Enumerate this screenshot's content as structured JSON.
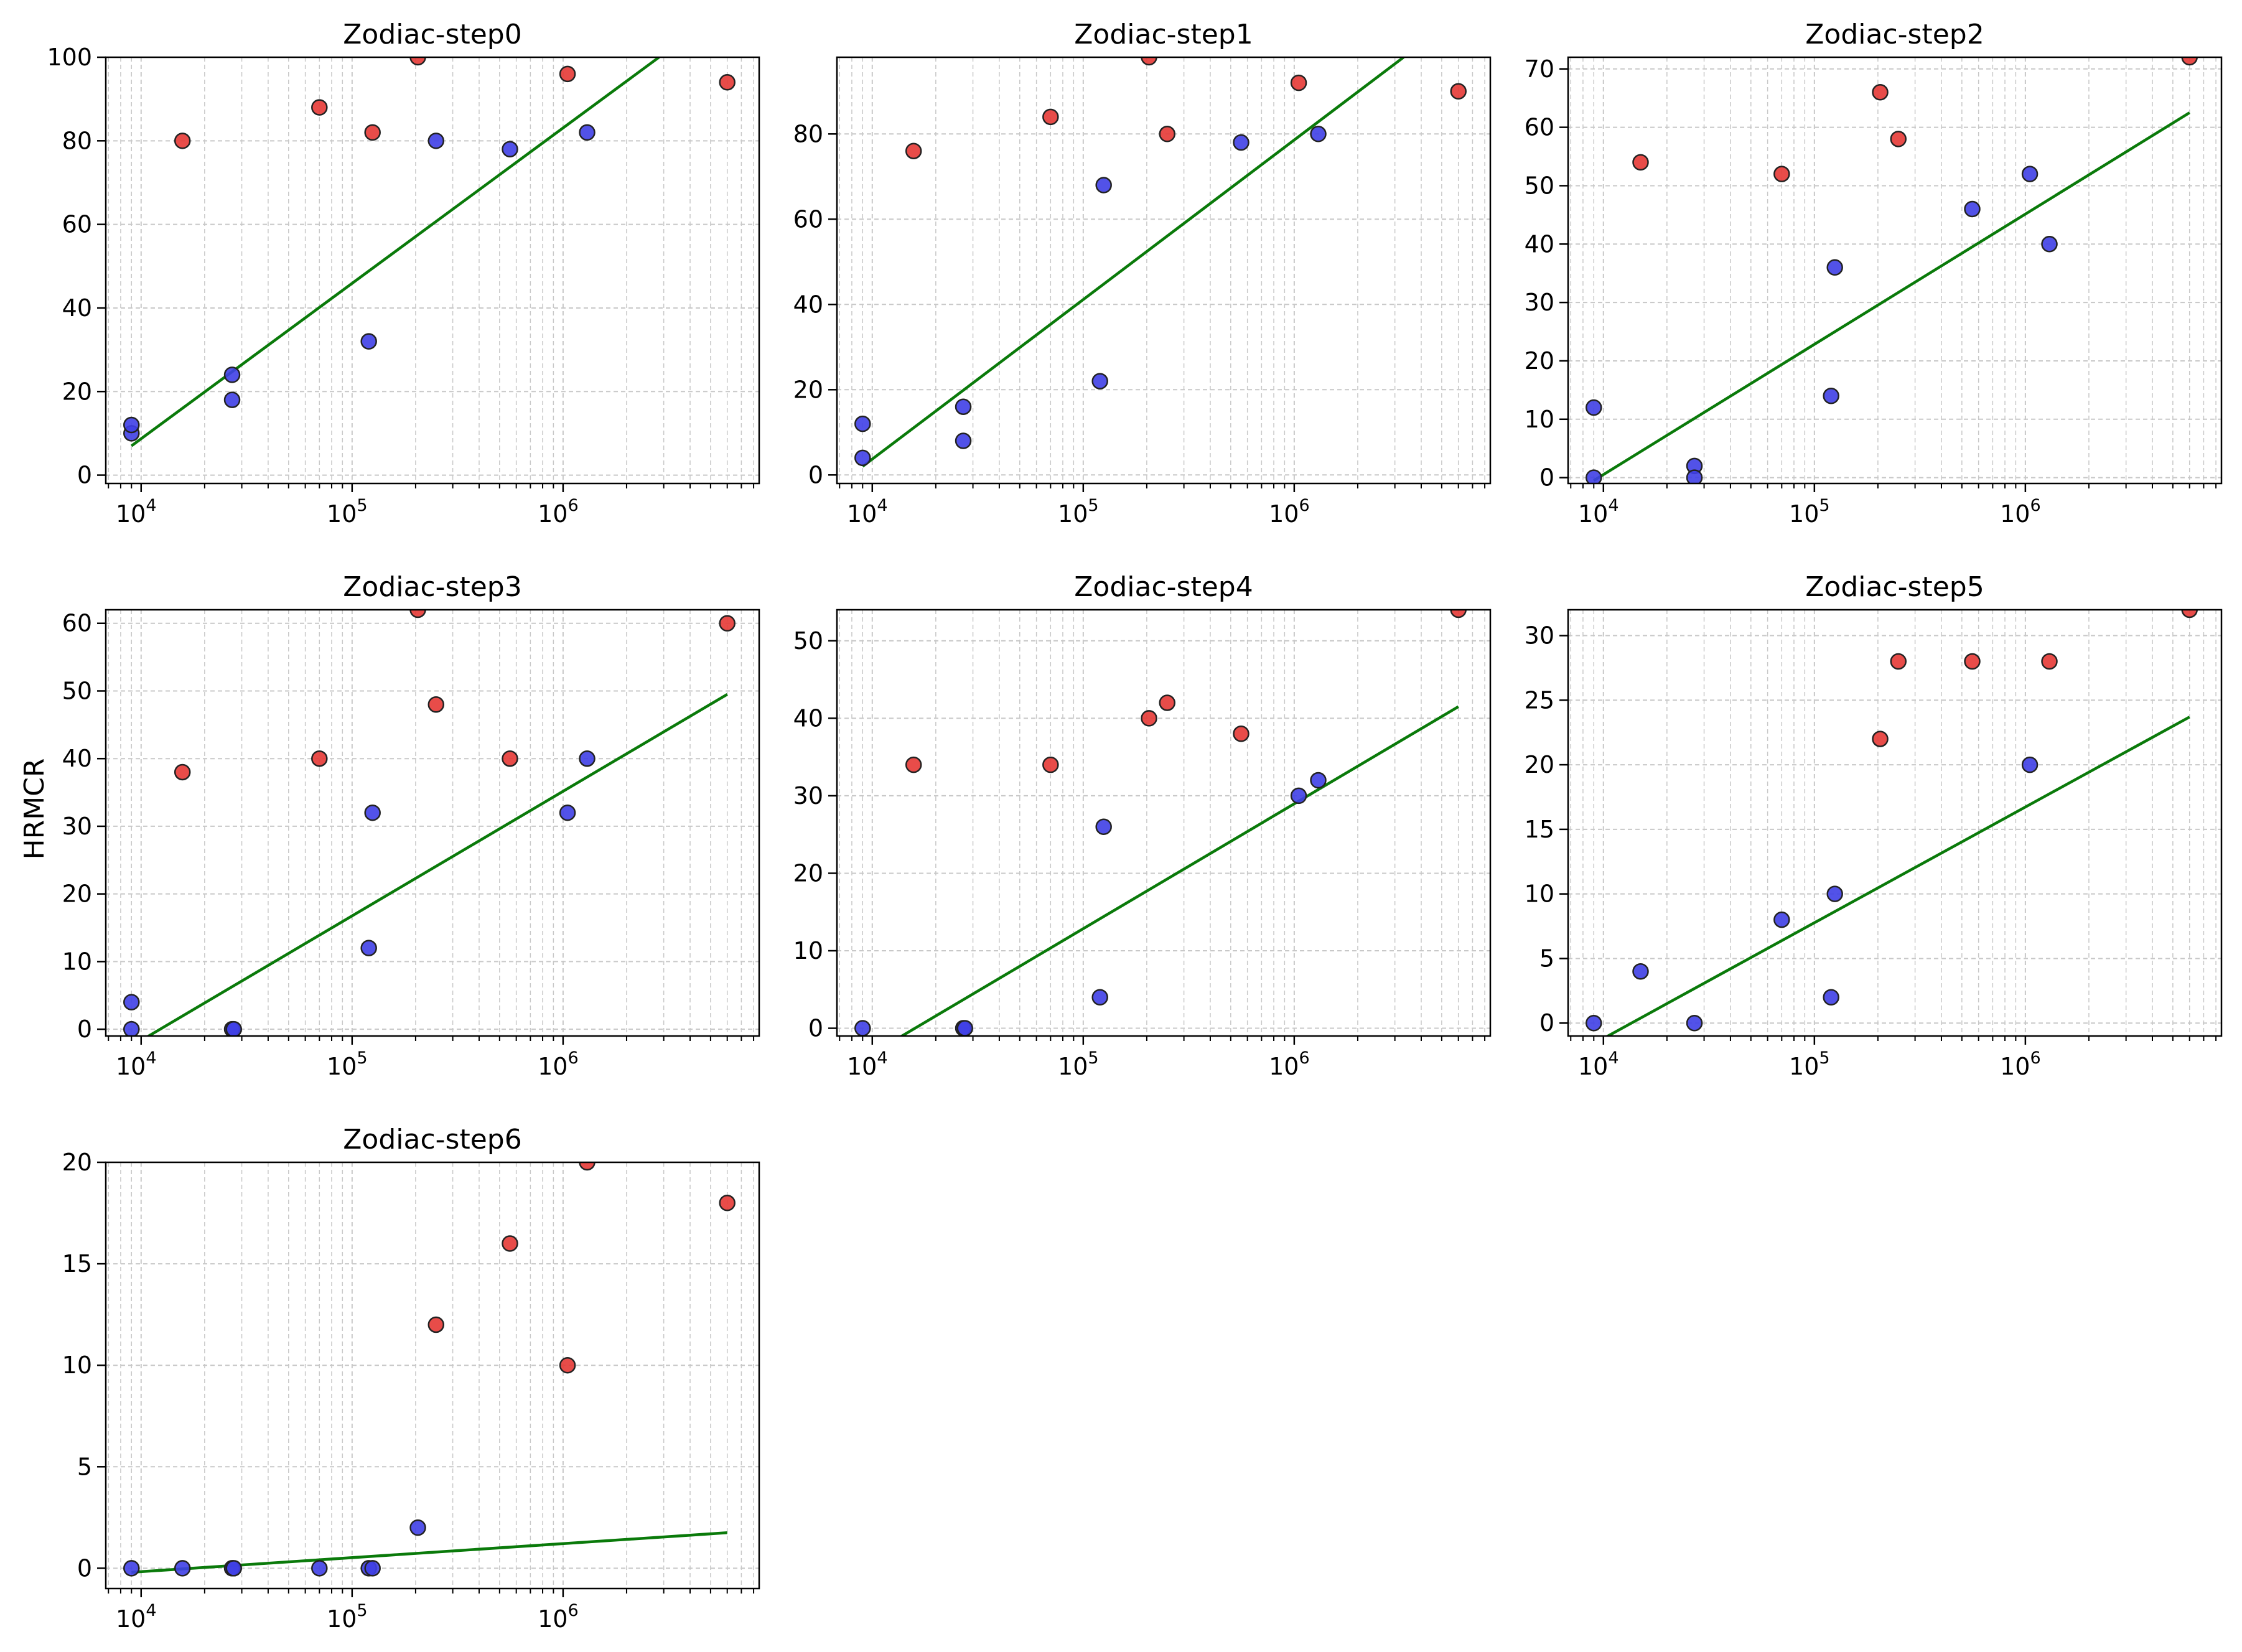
{
  "figure": {
    "ylabel": "HRMCR"
  },
  "colors": {
    "high": "#e53935",
    "low": "#3f3fe6",
    "edge": "#222222",
    "fit": "#0a7a0a",
    "grid": "#c8c8c8",
    "axis": "#000000"
  },
  "x_ticks": [
    {
      "value": 10000,
      "base": "10",
      "exp": "4"
    },
    {
      "value": 100000,
      "base": "10",
      "exp": "5"
    },
    {
      "value": 1000000,
      "base": "10",
      "exp": "6"
    }
  ],
  "chart_data": [
    {
      "type": "scatter",
      "title": "Zodiac-step0",
      "xscale": "log",
      "xlim": [
        6800,
        8500000
      ],
      "ylim": [
        -2,
        100
      ],
      "yticks": [
        0,
        20,
        40,
        60,
        80,
        100
      ],
      "series": [
        {
          "name": "red",
          "points": [
            [
              15700,
              80
            ],
            [
              70000,
              88
            ],
            [
              125000,
              82
            ],
            [
              205000,
              100
            ],
            [
              1050000,
              96
            ],
            [
              6000000,
              94
            ]
          ]
        },
        {
          "name": "blue",
          "points": [
            [
              9000,
              10
            ],
            [
              9000,
              12
            ],
            [
              27000,
              24
            ],
            [
              27000,
              18
            ],
            [
              120000,
              32
            ],
            [
              250000,
              80
            ],
            [
              560000,
              78
            ],
            [
              1300000,
              82
            ]
          ]
        }
      ],
      "fit": {
        "x": [
          9000,
          2850000
        ],
        "y": [
          7,
          100
        ]
      }
    },
    {
      "type": "scatter",
      "title": "Zodiac-step1",
      "xscale": "log",
      "xlim": [
        6800,
        8500000
      ],
      "ylim": [
        -2,
        98
      ],
      "yticks": [
        0,
        20,
        40,
        60,
        80
      ],
      "series": [
        {
          "name": "red",
          "points": [
            [
              15700,
              76
            ],
            [
              70000,
              84
            ],
            [
              205000,
              98
            ],
            [
              250000,
              80
            ],
            [
              1050000,
              92
            ],
            [
              6000000,
              90
            ]
          ]
        },
        {
          "name": "blue",
          "points": [
            [
              9000,
              12
            ],
            [
              9000,
              4
            ],
            [
              27000,
              16
            ],
            [
              27000,
              8
            ],
            [
              120000,
              22
            ],
            [
              125000,
              68
            ],
            [
              560000,
              78
            ],
            [
              1300000,
              80
            ]
          ]
        }
      ],
      "fit": {
        "x": [
          9000,
          3300000
        ],
        "y": [
          2,
          98
        ]
      }
    },
    {
      "type": "scatter",
      "title": "Zodiac-step2",
      "xscale": "log",
      "xlim": [
        6800,
        8500000
      ],
      "ylim": [
        -1,
        72
      ],
      "yticks": [
        0,
        10,
        20,
        30,
        40,
        50,
        60,
        70
      ],
      "series": [
        {
          "name": "red",
          "points": [
            [
              15000,
              54
            ],
            [
              70000,
              52
            ],
            [
              205000,
              66
            ],
            [
              250000,
              58
            ],
            [
              6000000,
              72
            ]
          ]
        },
        {
          "name": "blue",
          "points": [
            [
              9000,
              12
            ],
            [
              9000,
              0
            ],
            [
              27000,
              2
            ],
            [
              27000,
              0
            ],
            [
              120000,
              14
            ],
            [
              125000,
              36
            ],
            [
              560000,
              46
            ],
            [
              1050000,
              52
            ],
            [
              1300000,
              40
            ]
          ]
        }
      ],
      "fit": {
        "x": [
          9000,
          6000000
        ],
        "y": [
          -0.5,
          62.5
        ]
      }
    },
    {
      "type": "scatter",
      "title": "Zodiac-step3",
      "xscale": "log",
      "xlim": [
        6800,
        8500000
      ],
      "ylim": [
        -1,
        62
      ],
      "yticks": [
        0,
        10,
        20,
        30,
        40,
        50,
        60
      ],
      "series": [
        {
          "name": "red",
          "points": [
            [
              15700,
              38
            ],
            [
              70000,
              40
            ],
            [
              205000,
              62
            ],
            [
              250000,
              48
            ],
            [
              560000,
              40
            ],
            [
              6000000,
              60
            ]
          ]
        },
        {
          "name": "blue",
          "points": [
            [
              9000,
              4
            ],
            [
              9000,
              0
            ],
            [
              27000,
              0
            ],
            [
              27500,
              0
            ],
            [
              120000,
              12
            ],
            [
              125000,
              32
            ],
            [
              1050000,
              32
            ],
            [
              1300000,
              40
            ]
          ]
        }
      ],
      "fit": {
        "x": [
          9000,
          6000000
        ],
        "y": [
          -2.5,
          49.5
        ]
      }
    },
    {
      "type": "scatter",
      "title": "Zodiac-step4",
      "xscale": "log",
      "xlim": [
        6800,
        8500000
      ],
      "ylim": [
        -1,
        54
      ],
      "yticks": [
        0,
        10,
        20,
        30,
        40,
        50
      ],
      "series": [
        {
          "name": "red",
          "points": [
            [
              15700,
              34
            ],
            [
              70000,
              34
            ],
            [
              205000,
              40
            ],
            [
              250000,
              42
            ],
            [
              560000,
              38
            ],
            [
              6000000,
              54
            ]
          ]
        },
        {
          "name": "blue",
          "points": [
            [
              9000,
              0
            ],
            [
              27000,
              0
            ],
            [
              27500,
              0
            ],
            [
              120000,
              4
            ],
            [
              125000,
              26
            ],
            [
              1050000,
              30
            ],
            [
              1300000,
              32
            ]
          ]
        }
      ],
      "fit": {
        "x": [
          9000,
          6000000
        ],
        "y": [
          -4,
          41.5
        ]
      }
    },
    {
      "type": "scatter",
      "title": "Zodiac-step5",
      "xscale": "log",
      "xlim": [
        6800,
        8500000
      ],
      "ylim": [
        -1,
        32
      ],
      "yticks": [
        0,
        5,
        10,
        15,
        20,
        25,
        30
      ],
      "series": [
        {
          "name": "red",
          "points": [
            [
              205000,
              22
            ],
            [
              250000,
              28
            ],
            [
              560000,
              28
            ],
            [
              1300000,
              28
            ],
            [
              6000000,
              32
            ]
          ]
        },
        {
          "name": "blue",
          "points": [
            [
              9000,
              0
            ],
            [
              15000,
              4
            ],
            [
              27000,
              0
            ],
            [
              70000,
              8
            ],
            [
              120000,
              2
            ],
            [
              125000,
              10
            ],
            [
              1050000,
              20
            ]
          ]
        }
      ],
      "fit": {
        "x": [
          9000,
          6000000
        ],
        "y": [
          -1.6,
          23.7
        ]
      }
    },
    {
      "type": "scatter",
      "title": "Zodiac-step6",
      "xscale": "log",
      "xlim": [
        6800,
        8500000
      ],
      "ylim": [
        -1,
        20
      ],
      "yticks": [
        0,
        5,
        10,
        15,
        20
      ],
      "series": [
        {
          "name": "red",
          "points": [
            [
              250000,
              12
            ],
            [
              560000,
              16
            ],
            [
              1050000,
              10
            ],
            [
              1300000,
              20
            ],
            [
              6000000,
              18
            ]
          ]
        },
        {
          "name": "blue",
          "points": [
            [
              9000,
              0
            ],
            [
              15700,
              0
            ],
            [
              27000,
              0
            ],
            [
              27500,
              0
            ],
            [
              70000,
              0
            ],
            [
              120000,
              0
            ],
            [
              125000,
              0
            ],
            [
              205000,
              2
            ]
          ]
        }
      ],
      "fit": {
        "x": [
          9000,
          6000000
        ],
        "y": [
          -0.2,
          1.75
        ]
      }
    }
  ]
}
